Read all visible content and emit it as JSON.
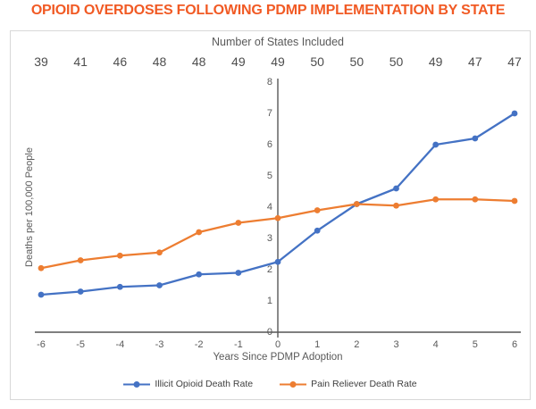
{
  "page_title": "OPIOID OVERDOSES FOLLOWING PDMP IMPLEMENTATION BY STATE",
  "colors": {
    "title": "#F15A24",
    "axis_line": "#7f7f7f",
    "y_axis_line": "#595959",
    "text": "#595959"
  },
  "chart_data": {
    "type": "line",
    "top_axis": {
      "label": "Number of States Included",
      "values": [
        39,
        41,
        46,
        48,
        48,
        49,
        49,
        50,
        50,
        50,
        49,
        47,
        47
      ]
    },
    "x": [
      -6,
      -5,
      -4,
      -3,
      -2,
      -1,
      0,
      1,
      2,
      3,
      4,
      5,
      6
    ],
    "xlabel": "Years Since PDMP Adoption",
    "ylabel": "Deaths per 100,000 People",
    "ylim": [
      0,
      8
    ],
    "yticks": [
      0,
      1,
      2,
      3,
      4,
      5,
      6,
      7,
      8
    ],
    "grid": false,
    "legend_position": "bottom",
    "series": [
      {
        "name": "Illicit Opioid Death Rate",
        "color": "#4472C4",
        "values": [
          1.2,
          1.3,
          1.45,
          1.5,
          1.85,
          1.9,
          2.25,
          3.25,
          4.1,
          4.6,
          6.0,
          6.2,
          7.0
        ]
      },
      {
        "name": "Pain Reliever Death Rate",
        "color": "#ED7D31",
        "values": [
          2.05,
          2.3,
          2.45,
          2.55,
          3.2,
          3.5,
          3.65,
          3.9,
          4.1,
          4.05,
          4.25,
          4.25,
          4.2
        ]
      }
    ]
  }
}
